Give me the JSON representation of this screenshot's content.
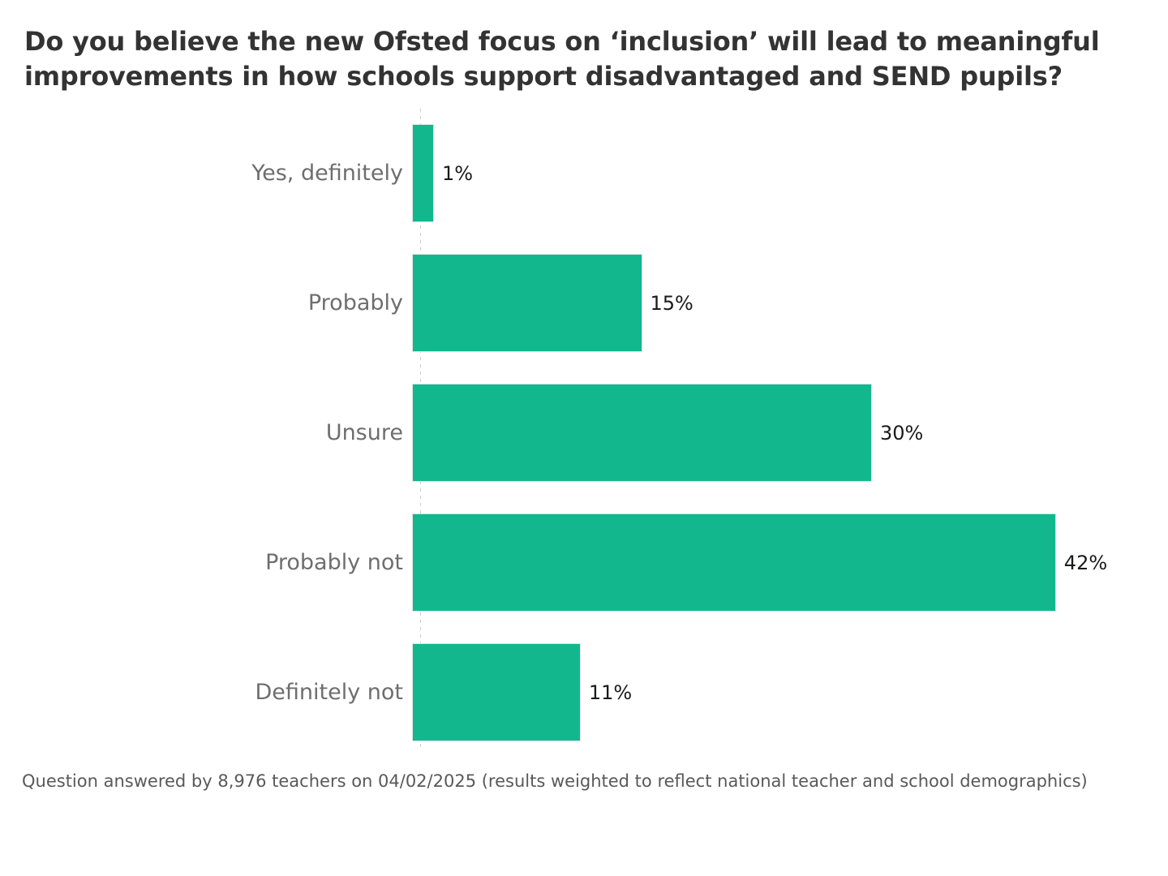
{
  "title": "Do you believe the new Ofsted focus on ‘inclusion’ will lead to meaningful improvements in how schools support disadvantaged and SEND pupils?",
  "footnote": "Question answered by 8,976 teachers on 04/02/2025 (results weighted to reflect national teacher and school demographics)",
  "colors": {
    "bar_fill": "#13b78e",
    "bar_border": "#e3e3e3",
    "title_text": "#333333",
    "category_text": "#6e6e6e",
    "value_text": "#1a1a1a",
    "footnote_text": "#595959",
    "axis_line": "#cccccc",
    "background": "#ffffff"
  },
  "chart_data": {
    "type": "bar",
    "orientation": "horizontal",
    "title": "Do you believe the new Ofsted focus on ‘inclusion’ will lead to meaningful improvements in how schools support disadvantaged and SEND pupils?",
    "categories": [
      "Yes, definitely",
      "Probably",
      "Unsure",
      "Probably not",
      "Definitely not"
    ],
    "values": [
      1,
      15,
      30,
      42,
      11
    ],
    "value_labels": [
      "1%",
      "15%",
      "30%",
      "42%",
      "11%"
    ],
    "unit": "%",
    "xlabel": "",
    "ylabel": "",
    "xlim": [
      0,
      45
    ],
    "grid": false,
    "legend": "none",
    "value_label_position": "outside-end",
    "baseline_axis_style": "dashed"
  }
}
